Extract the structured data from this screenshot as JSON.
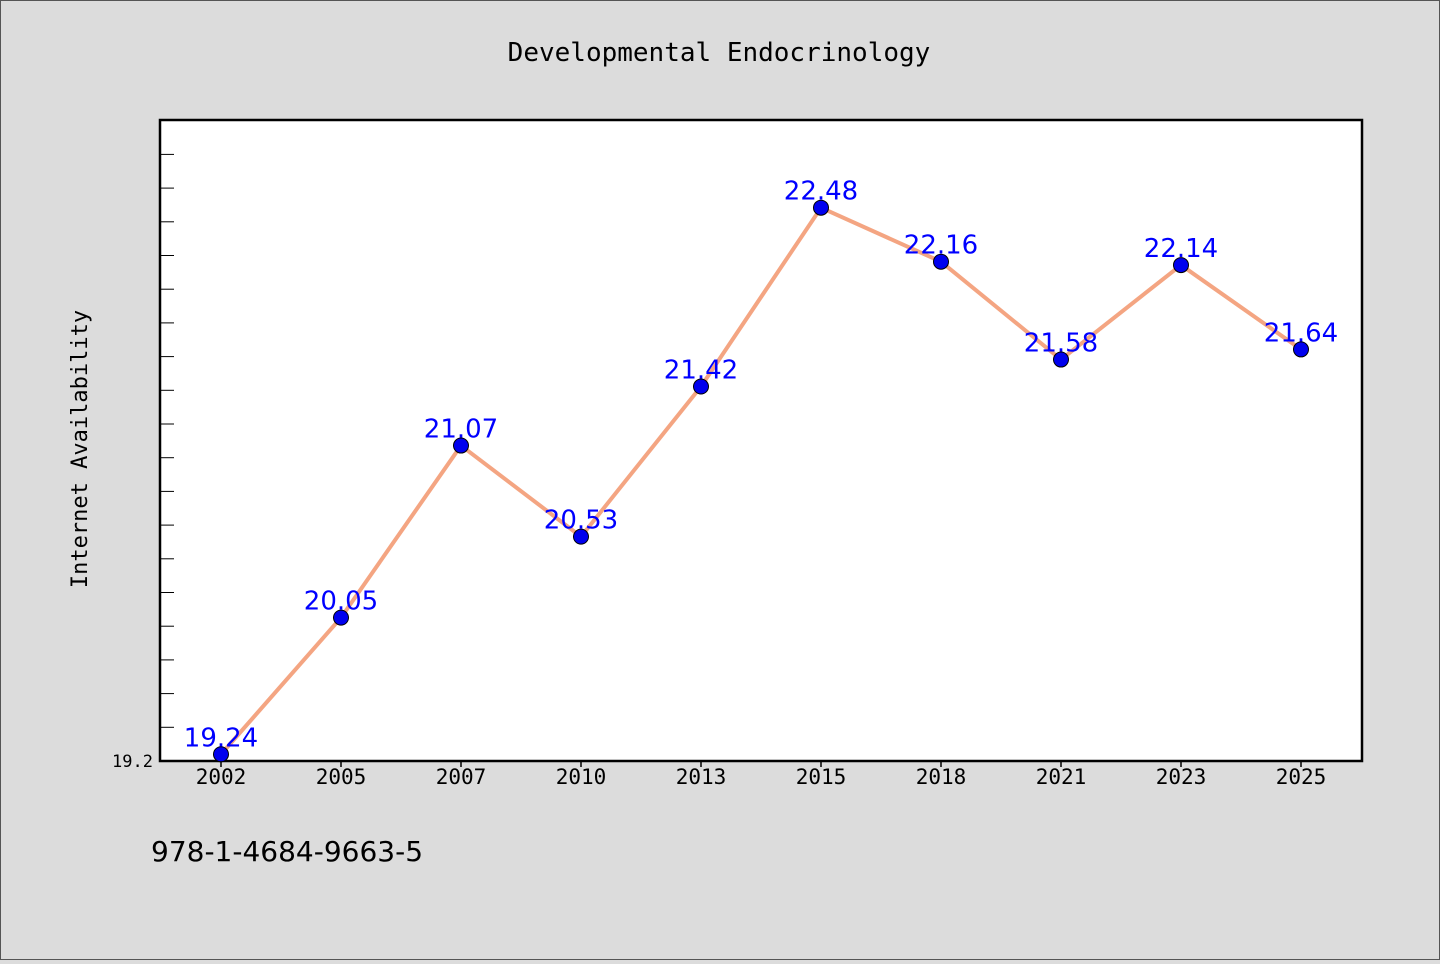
{
  "chart_data": {
    "type": "line",
    "title": "Developmental Endocrinology",
    "xlabel": "",
    "ylabel": "Internet Availability",
    "categories": [
      "2002",
      "2005",
      "2007",
      "2010",
      "2013",
      "2015",
      "2018",
      "2021",
      "2023",
      "2025"
    ],
    "values": [
      19.24,
      20.05,
      21.07,
      20.53,
      21.42,
      22.48,
      22.16,
      21.58,
      22.14,
      21.64
    ],
    "data_labels": [
      "19.24",
      "20.05",
      "21.07",
      "20.53",
      "21.42",
      "22.48",
      "22.16",
      "21.58",
      "22.14",
      "21.64"
    ],
    "ytick_label": "19.2",
    "ylim": [
      19.2,
      23.0
    ],
    "grid": false,
    "legend": "none",
    "colors": {
      "line": "#f4a582",
      "marker": "#0000ee",
      "label": "#0000ff",
      "background": "#dcdcdc",
      "plot": "#ffffff"
    }
  },
  "caption": "978-1-4684-9663-5"
}
